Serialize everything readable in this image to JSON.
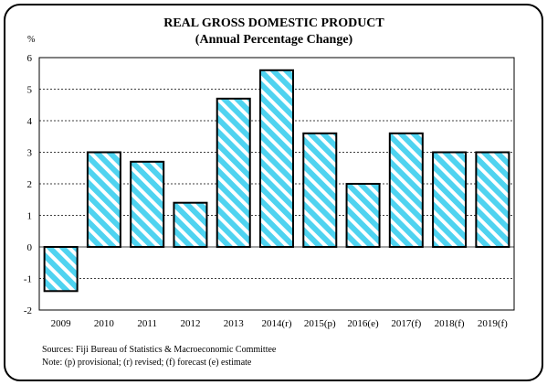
{
  "chart_data": {
    "type": "bar",
    "title": "REAL GROSS DOMESTIC PRODUCT",
    "subtitle": "(Annual Percentage Change)",
    "ylabel": "%",
    "xlabel": "",
    "ylim": [
      -2,
      6
    ],
    "yticks": [
      -2,
      -1,
      0,
      1,
      2,
      3,
      4,
      5,
      6
    ],
    "grid": true,
    "categories": [
      "2009",
      "2010",
      "2011",
      "2012",
      "2013",
      "2014(r)",
      "2015(p)",
      "2016(e)",
      "2017(f)",
      "2018(f)",
      "2019(f)"
    ],
    "values": [
      -1.4,
      3.0,
      2.7,
      1.4,
      4.7,
      5.6,
      3.6,
      2.0,
      3.6,
      3.0,
      3.0
    ],
    "colors": {
      "bar_fill": "#4fd3f0",
      "bar_stripe": "#ffffff",
      "bar_outline": "#000000"
    }
  },
  "notes": {
    "sources": "Sources:  Fiji Bureau of Statistics & Macroeconomic Committee",
    "legend_note": "Note: (p) provisional; (r) revised; (f) forecast (e) estimate"
  }
}
